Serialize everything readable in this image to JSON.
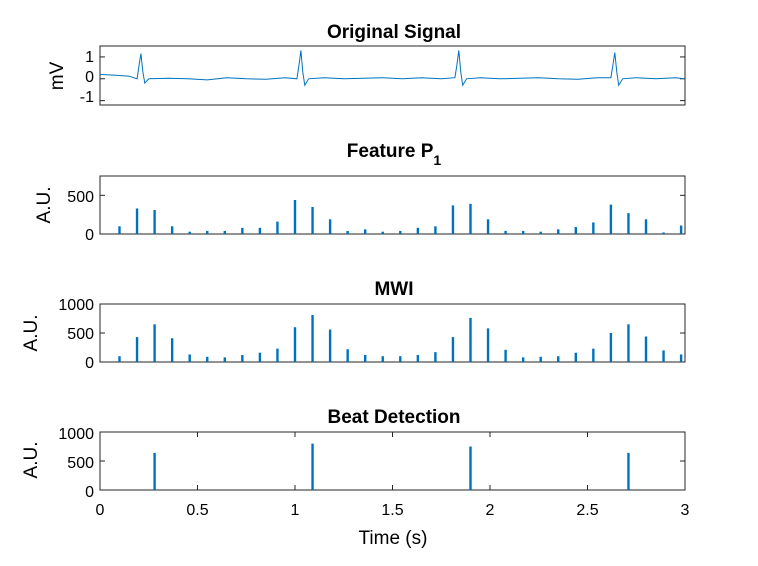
{
  "figure": {
    "background": "#ffffff",
    "line_color": "#0072BD"
  },
  "chart_data": [
    {
      "type": "line",
      "title": "Original Signal",
      "ylabel": "mV",
      "xlabel": "",
      "xlim": [
        0,
        3
      ],
      "ylim": [
        -1.2,
        1.5
      ],
      "yticks": [
        1,
        0,
        -1
      ],
      "yticklabels": [
        "1",
        "0",
        "-1"
      ],
      "xticks_visible": false,
      "grid": false,
      "series": [
        {
          "beats_s": [
            0.21,
            1.03,
            1.84,
            2.64
          ],
          "x": [
            0.0,
            0.1,
            0.15,
            0.19,
            0.2,
            0.21,
            0.22,
            0.23,
            0.25,
            0.35,
            0.45,
            0.55,
            0.65,
            0.75,
            0.85,
            0.95,
            1.01,
            1.02,
            1.03,
            1.04,
            1.05,
            1.07,
            1.15,
            1.25,
            1.35,
            1.45,
            1.55,
            1.65,
            1.75,
            1.82,
            1.83,
            1.84,
            1.85,
            1.86,
            1.88,
            1.95,
            2.05,
            2.15,
            2.25,
            2.35,
            2.45,
            2.55,
            2.62,
            2.63,
            2.64,
            2.65,
            2.66,
            2.68,
            2.75,
            2.85,
            2.95,
            3.0
          ],
          "y": [
            0.2,
            0.15,
            0.12,
            0.0,
            0.6,
            1.15,
            0.3,
            -0.2,
            0.0,
            0.02,
            0.0,
            -0.05,
            0.05,
            0.0,
            -0.02,
            0.05,
            0.0,
            0.6,
            1.3,
            0.3,
            -0.3,
            0.0,
            0.05,
            0.0,
            0.02,
            0.05,
            0.0,
            0.05,
            0.0,
            0.05,
            0.6,
            1.3,
            0.3,
            -0.3,
            0.0,
            0.05,
            0.0,
            0.02,
            0.05,
            0.0,
            -0.02,
            0.05,
            0.05,
            0.6,
            1.2,
            0.3,
            -0.3,
            0.0,
            0.05,
            0.0,
            0.05,
            0.0
          ]
        }
      ]
    },
    {
      "type": "bar",
      "title": "Feature P",
      "title_subscript": "1",
      "ylabel": "A.U.",
      "xlabel": "",
      "xlim": [
        0,
        3
      ],
      "ylim": [
        0,
        750
      ],
      "yticks": [
        500,
        0
      ],
      "yticklabels": [
        "500",
        "0"
      ],
      "xticks_visible": false,
      "grid": false,
      "series": [
        {
          "x": [
            0.1,
            0.19,
            0.28,
            0.37,
            0.46,
            0.55,
            0.64,
            0.73,
            0.82,
            0.91,
            1.0,
            1.09,
            1.18,
            1.27,
            1.36,
            1.45,
            1.54,
            1.63,
            1.72,
            1.81,
            1.9,
            1.99,
            2.08,
            2.17,
            2.26,
            2.35,
            2.44,
            2.53,
            2.62,
            2.71,
            2.8,
            2.89,
            2.98
          ],
          "values": [
            100,
            330,
            310,
            100,
            30,
            40,
            40,
            80,
            80,
            160,
            440,
            350,
            190,
            40,
            60,
            30,
            40,
            80,
            100,
            370,
            390,
            190,
            40,
            40,
            30,
            60,
            90,
            150,
            380,
            270,
            190,
            20,
            110
          ]
        }
      ]
    },
    {
      "type": "bar",
      "title": "MWI",
      "ylabel": "A.U.",
      "xlabel": "",
      "xlim": [
        0,
        3
      ],
      "ylim": [
        0,
        1000
      ],
      "yticks": [
        1000,
        500,
        0
      ],
      "yticklabels": [
        "1000",
        "500",
        "0"
      ],
      "xticks_visible": false,
      "grid": false,
      "series": [
        {
          "x": [
            0.1,
            0.19,
            0.28,
            0.37,
            0.46,
            0.55,
            0.64,
            0.73,
            0.82,
            0.91,
            1.0,
            1.09,
            1.18,
            1.27,
            1.36,
            1.45,
            1.54,
            1.63,
            1.72,
            1.81,
            1.9,
            1.99,
            2.08,
            2.17,
            2.26,
            2.35,
            2.44,
            2.53,
            2.62,
            2.71,
            2.8,
            2.89,
            2.98
          ],
          "values": [
            100,
            430,
            650,
            410,
            130,
            90,
            80,
            120,
            160,
            230,
            600,
            810,
            560,
            220,
            120,
            100,
            100,
            120,
            170,
            430,
            760,
            580,
            210,
            80,
            90,
            100,
            160,
            230,
            500,
            650,
            440,
            200,
            130
          ]
        }
      ]
    },
    {
      "type": "bar",
      "title": "Beat Detection",
      "ylabel": "A.U.",
      "xlabel": "Time (s)",
      "xlim": [
        0,
        3
      ],
      "ylim": [
        0,
        1000
      ],
      "yticks": [
        1000,
        500,
        0
      ],
      "yticklabels": [
        "1000",
        "500",
        "0"
      ],
      "xticks": [
        0,
        0.5,
        1,
        1.5,
        2,
        2.5,
        3
      ],
      "xticklabels": [
        "0",
        "0.5",
        "1",
        "1.5",
        "2",
        "2.5",
        "3"
      ],
      "xticks_visible": true,
      "grid": false,
      "series": [
        {
          "x": [
            0.28,
            1.09,
            1.9,
            2.71
          ],
          "values": [
            640,
            800,
            750,
            640
          ]
        }
      ]
    }
  ]
}
